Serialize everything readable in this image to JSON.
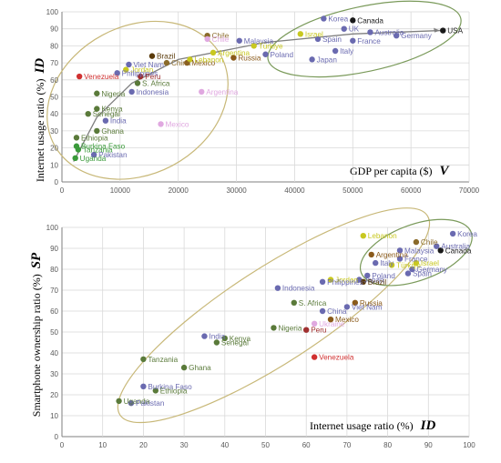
{
  "chart_data": [
    {
      "type": "scatter",
      "title": "",
      "xlabel": "GDP per capita ($)",
      "xlabel_symbol": "V",
      "ylabel": "Internet usage ratio (%)",
      "ylabel_symbol": "ID",
      "xlim": [
        0,
        70000
      ],
      "ylim": [
        0,
        100
      ],
      "xticks": [
        "0",
        "10000",
        "20000",
        "30000",
        "40000",
        "50000",
        "60000",
        "70000"
      ],
      "yticks": [
        "0",
        "10",
        "20",
        "30",
        "40",
        "50",
        "60",
        "70",
        "80",
        "90",
        "100"
      ],
      "grid": true,
      "trend_arrow": true,
      "cluster_ellipses": 2,
      "points": [
        {
          "label": "Korea",
          "x": 45000,
          "y": 96,
          "color": "#6a6ab0"
        },
        {
          "label": "Canada",
          "x": 50000,
          "y": 95,
          "color": "#1a1a1a"
        },
        {
          "label": "UK",
          "x": 48500,
          "y": 90,
          "color": "#6a6ab0"
        },
        {
          "label": "Australia",
          "x": 53000,
          "y": 88,
          "color": "#6a6ab0"
        },
        {
          "label": "USA",
          "x": 65500,
          "y": 89,
          "color": "#1a1a1a"
        },
        {
          "label": "Israel",
          "x": 41000,
          "y": 87,
          "color": "#c8c820"
        },
        {
          "label": "France",
          "x": 50000,
          "y": 83,
          "color": "#6a6ab0"
        },
        {
          "label": "Germany",
          "x": 57500,
          "y": 86,
          "color": "#6a6ab0"
        },
        {
          "label": "Spain",
          "x": 44000,
          "y": 84,
          "color": "#6a6ab0"
        },
        {
          "label": "Italy",
          "x": 47000,
          "y": 77,
          "color": "#6a6ab0"
        },
        {
          "label": "Japan",
          "x": 43000,
          "y": 72,
          "color": "#6a6ab0"
        },
        {
          "label": "Poland",
          "x": 35000,
          "y": 75,
          "color": "#6a6ab0"
        },
        {
          "label": "Chile",
          "x": 25000,
          "y": 86,
          "color": "#8a6a2a"
        },
        {
          "label": "Malaysia",
          "x": 30500,
          "y": 83,
          "color": "#6a6ab0"
        },
        {
          "label": "Chile",
          "x": 25000,
          "y": 84,
          "color": "#e0a8e0"
        },
        {
          "label": "Türkiye",
          "x": 33000,
          "y": 80,
          "color": "#c8c820"
        },
        {
          "label": "Argentina",
          "x": 26000,
          "y": 76,
          "color": "#c8c820"
        },
        {
          "label": "Russia",
          "x": 29500,
          "y": 73,
          "color": "#8a5a1a"
        },
        {
          "label": "Brazil",
          "x": 15500,
          "y": 74,
          "color": "#5a3a0a"
        },
        {
          "label": "Mexico",
          "x": 21500,
          "y": 70,
          "color": "#8a5a1a"
        },
        {
          "label": "Lebanon",
          "x": 22000,
          "y": 72,
          "color": "#c8c820"
        },
        {
          "label": "China",
          "x": 18000,
          "y": 70,
          "color": "#8a6a2a"
        },
        {
          "label": "Viet Nam",
          "x": 11500,
          "y": 69,
          "color": "#6a6ab0"
        },
        {
          "label": "Jordan",
          "x": 11000,
          "y": 66,
          "color": "#c8c820"
        },
        {
          "label": "Philippines",
          "x": 9500,
          "y": 64,
          "color": "#6a6ab0"
        },
        {
          "label": "Peru",
          "x": 13500,
          "y": 62,
          "color": "#a03030"
        },
        {
          "label": "Venezuela",
          "x": 3000,
          "y": 62,
          "color": "#d03030"
        },
        {
          "label": "S. Africa",
          "x": 13000,
          "y": 58,
          "color": "#5a7a3a"
        },
        {
          "label": "Nigeria",
          "x": 6000,
          "y": 52,
          "color": "#5a7a3a"
        },
        {
          "label": "Indonesia",
          "x": 12000,
          "y": 53,
          "color": "#6a6ab0"
        },
        {
          "label": "Argentina",
          "x": 24000,
          "y": 53,
          "color": "#e0a8e0"
        },
        {
          "label": "Kenya",
          "x": 6000,
          "y": 43,
          "color": "#5a7a3a"
        },
        {
          "label": "Senegal",
          "x": 4500,
          "y": 40,
          "color": "#5a7a3a"
        },
        {
          "label": "India",
          "x": 7500,
          "y": 36,
          "color": "#6a6ab0"
        },
        {
          "label": "Mexico",
          "x": 17000,
          "y": 34,
          "color": "#e0a8e0"
        },
        {
          "label": "Ghana",
          "x": 6000,
          "y": 30,
          "color": "#5a7a3a"
        },
        {
          "label": "Ethiopia",
          "x": 2500,
          "y": 26,
          "color": "#5a7a3a"
        },
        {
          "label": "Burkina Faso",
          "x": 2500,
          "y": 21,
          "color": "#3a9a3a"
        },
        {
          "label": "Tanzania",
          "x": 2800,
          "y": 19,
          "color": "#3a9a3a"
        },
        {
          "label": "Pakistan",
          "x": 5500,
          "y": 16,
          "color": "#6a6ab0"
        },
        {
          "label": "Uganda",
          "x": 2300,
          "y": 14,
          "color": "#3a9a3a"
        }
      ]
    },
    {
      "type": "scatter",
      "title": "",
      "xlabel": "Internet usage ratio (%)",
      "xlabel_symbol": "ID",
      "ylabel": "Smartphone ownership ratio (%)",
      "ylabel_symbol": "SP",
      "xlim": [
        0,
        100
      ],
      "ylim": [
        0,
        100
      ],
      "xticks": [
        "0",
        "10",
        "20",
        "30",
        "40",
        "50",
        "60",
        "70",
        "80",
        "90",
        "100"
      ],
      "yticks": [
        "0",
        "10",
        "20",
        "30",
        "40",
        "50",
        "60",
        "70",
        "80",
        "90",
        "100"
      ],
      "grid": true,
      "cluster_ellipses": 2,
      "points": [
        {
          "label": "Korea",
          "x": 96,
          "y": 97,
          "color": "#6a6ab0"
        },
        {
          "label": "Australia",
          "x": 92,
          "y": 91,
          "color": "#6a6ab0"
        },
        {
          "label": "Canada",
          "x": 93,
          "y": 89,
          "color": "#1a1a1a"
        },
        {
          "label": "Chile",
          "x": 87,
          "y": 93,
          "color": "#8a6a2a"
        },
        {
          "label": "Lebanon",
          "x": 74,
          "y": 96,
          "color": "#c8c820"
        },
        {
          "label": "Argentina",
          "x": 76,
          "y": 87,
          "color": "#8a5a1a"
        },
        {
          "label": "Malaysia",
          "x": 83,
          "y": 89,
          "color": "#6a6ab0"
        },
        {
          "label": "Italy",
          "x": 77,
          "y": 83,
          "color": "#6a6ab0"
        },
        {
          "label": "France",
          "x": 83,
          "y": 85,
          "color": "#6a6ab0"
        },
        {
          "label": "Israel",
          "x": 87,
          "y": 83,
          "color": "#c8c820"
        },
        {
          "label": "Türkiye",
          "x": 81,
          "y": 82,
          "color": "#c8c820"
        },
        {
          "label": "Germany",
          "x": 86,
          "y": 80,
          "color": "#6a6ab0"
        },
        {
          "label": "Spain",
          "x": 85,
          "y": 78,
          "color": "#6a6ab0"
        },
        {
          "label": "Jordan",
          "x": 66,
          "y": 75,
          "color": "#c8c820"
        },
        {
          "label": "Poland",
          "x": 75,
          "y": 77,
          "color": "#6a6ab0"
        },
        {
          "label": "Japan",
          "x": 73,
          "y": 75,
          "color": "#6a6ab0"
        },
        {
          "label": "Brazil",
          "x": 74,
          "y": 74,
          "color": "#5a3a0a"
        },
        {
          "label": "Philippines",
          "x": 64,
          "y": 74,
          "color": "#6a6ab0"
        },
        {
          "label": "Indonesia",
          "x": 53,
          "y": 71,
          "color": "#6a6ab0"
        },
        {
          "label": "S. Africa",
          "x": 57,
          "y": 64,
          "color": "#5a7a3a"
        },
        {
          "label": "Russia",
          "x": 72,
          "y": 64,
          "color": "#8a5a1a"
        },
        {
          "label": "China",
          "x": 64,
          "y": 60,
          "color": "#6a6ab0"
        },
        {
          "label": "Viet Nam",
          "x": 70,
          "y": 62,
          "color": "#6a6ab0"
        },
        {
          "label": "Mexico",
          "x": 66,
          "y": 56,
          "color": "#8a5a1a"
        },
        {
          "label": "Ukraine",
          "x": 62,
          "y": 54,
          "color": "#e0a8e0"
        },
        {
          "label": "Nigeria",
          "x": 52,
          "y": 52,
          "color": "#5a7a3a"
        },
        {
          "label": "Peru",
          "x": 60,
          "y": 51,
          "color": "#a03030"
        },
        {
          "label": "India",
          "x": 35,
          "y": 48,
          "color": "#6a6ab0"
        },
        {
          "label": "Kenya",
          "x": 40,
          "y": 47,
          "color": "#5a7a3a"
        },
        {
          "label": "Senegal",
          "x": 38,
          "y": 45,
          "color": "#5a7a3a"
        },
        {
          "label": "Venezuela",
          "x": 62,
          "y": 38,
          "color": "#d03030"
        },
        {
          "label": "Tanzania",
          "x": 20,
          "y": 37,
          "color": "#5a7a3a"
        },
        {
          "label": "Ghana",
          "x": 30,
          "y": 33,
          "color": "#5a7a3a"
        },
        {
          "label": "Burkina Faso",
          "x": 20,
          "y": 24,
          "color": "#6a6ab0"
        },
        {
          "label": "Ethiopia",
          "x": 23,
          "y": 22,
          "color": "#5a7a3a"
        },
        {
          "label": "Uganda",
          "x": 14,
          "y": 17,
          "color": "#5a7a3a"
        },
        {
          "label": "Pakistan",
          "x": 17,
          "y": 16,
          "color": "#6a6ab0"
        }
      ]
    }
  ]
}
